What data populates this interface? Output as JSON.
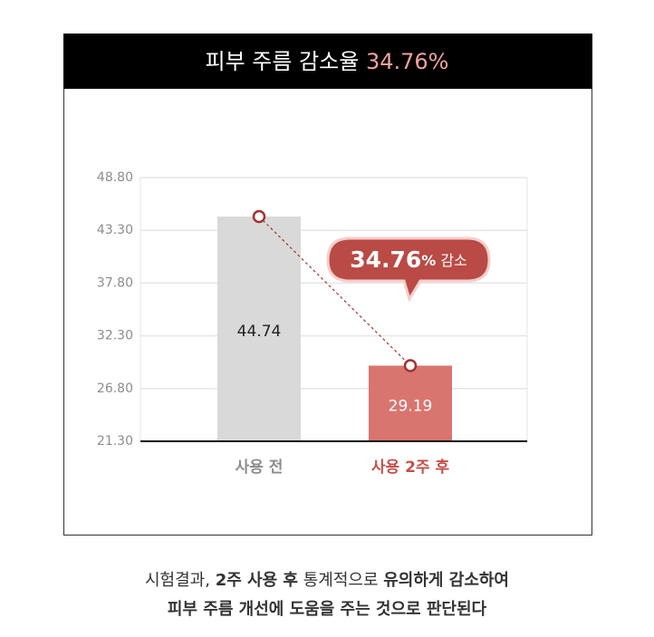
{
  "chart_data": {
    "type": "bar",
    "title": "피부 주름 감소율",
    "title_highlight": "34.76%",
    "title_highlight_color": "#f0a29c",
    "categories": [
      "사용 전",
      "사용 2주 후"
    ],
    "values": [
      44.74,
      29.19
    ],
    "colors": [
      "#d9d9d9",
      "#d9756f"
    ],
    "category_label_colors": [
      "#8c8c8c",
      "#c2504a"
    ],
    "value_label_colors": [
      "#222222",
      "#ffffff"
    ],
    "ylim": [
      21.3,
      48.8
    ],
    "yticks": [
      {
        "value": 21.3,
        "label": "21.30"
      },
      {
        "value": 26.8,
        "label": "26.80"
      },
      {
        "value": 32.3,
        "label": "32.30"
      },
      {
        "value": 37.8,
        "label": "37.80"
      },
      {
        "value": 43.3,
        "label": "43.30"
      },
      {
        "value": 48.8,
        "label": "48.80"
      }
    ],
    "grid": true,
    "annotation": {
      "number": "34.76",
      "unit": "%",
      "label": "감소"
    },
    "footer": [
      [
        {
          "text": "시험결과, ",
          "bold": false
        },
        {
          "text": "2주 사용 후",
          "bold": true
        },
        {
          "text": " 통계적으로 ",
          "bold": false
        },
        {
          "text": "유의하게 감소하여",
          "bold": true
        }
      ],
      [
        {
          "text": "피부 주름 개선에 도움을 주는 것으로 판단된다",
          "bold": true
        }
      ]
    ]
  }
}
